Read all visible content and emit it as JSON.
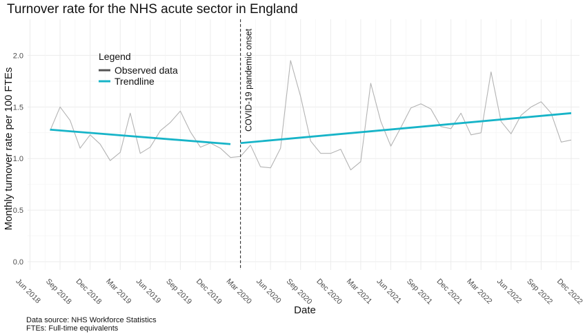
{
  "chart_data": {
    "type": "line",
    "title": "Turnover rate for the NHS acute sector in England",
    "xlabel": "Date",
    "ylabel": "Monthly turnover rate per 100 FTEs",
    "ylim": [
      -0.08,
      2.35
    ],
    "y_ticks": [
      0.0,
      0.5,
      1.0,
      1.5,
      2.0
    ],
    "y_tick_labels": [
      "0.0",
      "0.5",
      "1.0",
      "1.5",
      "2.0"
    ],
    "x_ticks": [
      "2018-06",
      "2018-09",
      "2018-12",
      "2019-03",
      "2019-06",
      "2019-09",
      "2019-12",
      "2020-03",
      "2020-06",
      "2020-09",
      "2020-12",
      "2021-03",
      "2021-06",
      "2021-09",
      "2021-12",
      "2022-03",
      "2022-06",
      "2022-09",
      "2022-12"
    ],
    "x_tick_labels": [
      "Jun 2018",
      "Sep 2018",
      "Dec 2018",
      "Mar 2019",
      "Jun 2019",
      "Sep 2019",
      "Dec 2019",
      "Mar 2020",
      "Jun 2020",
      "Sep 2020",
      "Dec 2020",
      "Mar 2021",
      "Jun 2021",
      "Sep 2021",
      "Dec 2021",
      "Mar 2022",
      "Jun 2022",
      "Sep 2022",
      "Dec 2022"
    ],
    "grid": true,
    "legend": {
      "title": "Legend",
      "position": "top-left",
      "entries": [
        {
          "label": "Observed data",
          "color": "#555555"
        },
        {
          "label": "Trendline",
          "color": "#17b4c8"
        }
      ]
    },
    "series": [
      {
        "name": "Observed data",
        "color": "#b3b3b3",
        "x": [
          "2018-08",
          "2018-09",
          "2018-10",
          "2018-11",
          "2018-12",
          "2019-01",
          "2019-02",
          "2019-03",
          "2019-04",
          "2019-05",
          "2019-06",
          "2019-07",
          "2019-08",
          "2019-09",
          "2019-10",
          "2019-11",
          "2019-12",
          "2020-01",
          "2020-02",
          "2020-03",
          "2020-04",
          "2020-05",
          "2020-06",
          "2020-07",
          "2020-08",
          "2020-09",
          "2020-10",
          "2020-11",
          "2020-12",
          "2021-01",
          "2021-02",
          "2021-03",
          "2021-04",
          "2021-05",
          "2021-06",
          "2021-07",
          "2021-08",
          "2021-09",
          "2021-10",
          "2021-11",
          "2021-12",
          "2022-01",
          "2022-02",
          "2022-03",
          "2022-04",
          "2022-05",
          "2022-06",
          "2022-07",
          "2022-08",
          "2022-09",
          "2022-10",
          "2022-11",
          "2022-12"
        ],
        "values": [
          1.27,
          1.5,
          1.37,
          1.1,
          1.23,
          1.14,
          0.98,
          1.06,
          1.44,
          1.05,
          1.11,
          1.27,
          1.35,
          1.46,
          1.26,
          1.11,
          1.15,
          1.1,
          1.01,
          1.02,
          1.13,
          0.92,
          0.91,
          1.1,
          1.95,
          1.6,
          1.17,
          1.05,
          1.05,
          1.09,
          0.89,
          0.97,
          1.73,
          1.36,
          1.12,
          1.3,
          1.49,
          1.53,
          1.48,
          1.31,
          1.29,
          1.44,
          1.23,
          1.25,
          1.84,
          1.36,
          1.24,
          1.42,
          1.5,
          1.55,
          1.44,
          1.16,
          1.18
        ]
      },
      {
        "name": "Trendline",
        "color": "#17b4c8",
        "segments": [
          {
            "x": [
              "2018-08",
              "2020-02"
            ],
            "values": [
              1.28,
              1.14
            ]
          },
          {
            "x": [
              "2020-03",
              "2022-12"
            ],
            "values": [
              1.15,
              1.44
            ]
          }
        ]
      }
    ],
    "annotations": [
      {
        "type": "vline",
        "x": "2020-03",
        "style": "dashed",
        "label": "COVID-19 pandemic onset"
      }
    ]
  },
  "caption": {
    "line1": "Data source: NHS Workforce Statistics",
    "line2": "FTEs: Full-time equivalents"
  }
}
